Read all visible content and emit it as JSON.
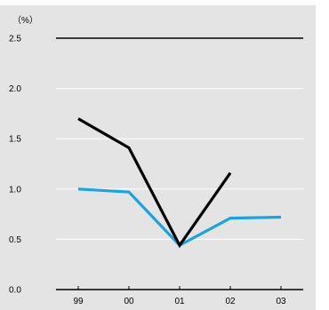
{
  "chart_data": {
    "type": "line",
    "title": "",
    "unit_label": "（%）",
    "xlabel": "",
    "ylabel": "",
    "categories": [
      "99",
      "00",
      "01",
      "02",
      "03"
    ],
    "y_ticks": [
      "0.0",
      "0.5",
      "1.0",
      "1.5",
      "2.0",
      "2.5"
    ],
    "ylim": [
      0,
      2.5
    ],
    "grid": true,
    "series": [
      {
        "color": "#000000",
        "values": [
          1.7,
          1.41,
          0.44,
          1.16,
          null
        ]
      },
      {
        "color": "#1aa3e2",
        "values": [
          1.0,
          0.97,
          0.44,
          0.71,
          0.72
        ]
      }
    ],
    "colors": {
      "background": "#ffffff",
      "plot_background": "#e4e4e4",
      "gridline": "#ffffff",
      "axis": "#000000"
    }
  }
}
